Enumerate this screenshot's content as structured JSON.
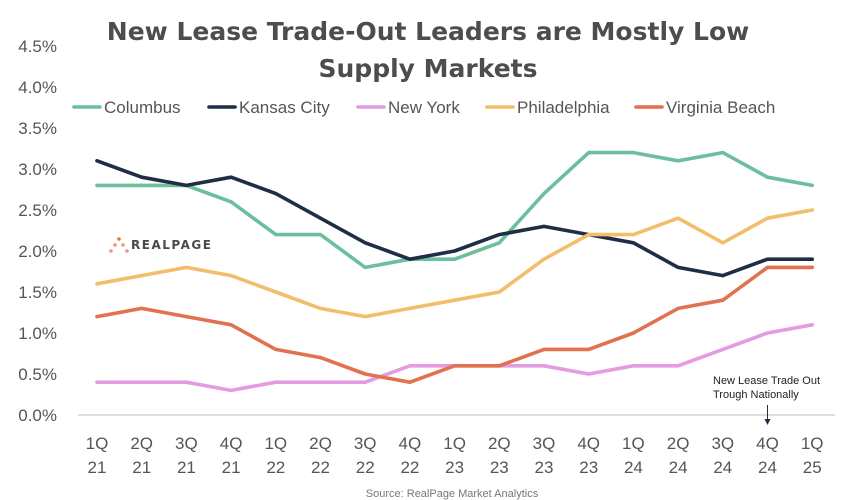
{
  "chart_data": {
    "type": "line",
    "title_lines": [
      "New Lease Trade-Out Leaders are Mostly Low",
      "Supply Markets"
    ],
    "categories": [
      [
        "1Q",
        "21"
      ],
      [
        "2Q",
        "21"
      ],
      [
        "3Q",
        "21"
      ],
      [
        "4Q",
        "21"
      ],
      [
        "1Q",
        "22"
      ],
      [
        "2Q",
        "22"
      ],
      [
        "3Q",
        "22"
      ],
      [
        "4Q",
        "22"
      ],
      [
        "1Q",
        "23"
      ],
      [
        "2Q",
        "23"
      ],
      [
        "3Q",
        "23"
      ],
      [
        "4Q",
        "23"
      ],
      [
        "1Q",
        "24"
      ],
      [
        "2Q",
        "24"
      ],
      [
        "3Q",
        "24"
      ],
      [
        "4Q",
        "24"
      ],
      [
        "1Q",
        "25"
      ]
    ],
    "y_ticks": [
      "0.0%",
      "0.5%",
      "1.0%",
      "1.5%",
      "2.0%",
      "2.5%",
      "3.0%",
      "3.5%",
      "4.0%",
      "4.5%"
    ],
    "ylim": [
      0,
      4.5
    ],
    "series": [
      {
        "name": "Columbus",
        "color": "#6cbf9c",
        "values": [
          2.8,
          2.8,
          2.8,
          2.6,
          2.2,
          2.2,
          1.8,
          1.9,
          1.9,
          2.1,
          2.7,
          3.2,
          3.2,
          3.1,
          3.2,
          2.9,
          2.8
        ]
      },
      {
        "name": "Kansas City",
        "color": "#1f2d45",
        "values": [
          3.1,
          2.9,
          2.8,
          2.9,
          2.7,
          2.4,
          2.1,
          1.9,
          2.0,
          2.2,
          2.3,
          2.2,
          2.1,
          1.8,
          1.7,
          1.9,
          1.9
        ]
      },
      {
        "name": "New York",
        "color": "#e49be0",
        "values": [
          0.4,
          0.4,
          0.4,
          0.3,
          0.4,
          0.4,
          0.4,
          0.6,
          0.6,
          0.6,
          0.6,
          0.5,
          0.6,
          0.6,
          0.8,
          1.0,
          1.1
        ]
      },
      {
        "name": "Philadelphia",
        "color": "#f2be6a",
        "values": [
          1.6,
          1.7,
          1.8,
          1.7,
          1.5,
          1.3,
          1.2,
          1.3,
          1.4,
          1.5,
          1.9,
          2.2,
          2.2,
          2.4,
          2.1,
          2.4,
          2.5
        ]
      },
      {
        "name": "Virginia Beach",
        "color": "#e2714f",
        "values": [
          1.2,
          1.3,
          1.2,
          1.1,
          0.8,
          0.7,
          0.5,
          0.4,
          0.6,
          0.6,
          0.8,
          0.8,
          1.0,
          1.3,
          1.4,
          1.8,
          1.8
        ]
      }
    ],
    "annotation": {
      "lines": [
        "New Lease Trade Out",
        "Trough Nationally"
      ],
      "category_index": 15
    },
    "logo": "REALPAGE",
    "source": "Source: RealPage Market Analytics",
    "legend_position": "top",
    "grid": false
  }
}
